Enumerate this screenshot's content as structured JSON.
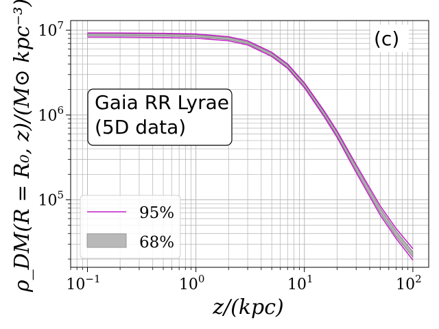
{
  "chart_data": {
    "type": "line",
    "title": "",
    "xlabel": "z/(kpc)",
    "ylabel": "ρ_DM(R = R₀, z)/(M⊙ kpc⁻³)",
    "xscale": "log",
    "yscale": "log",
    "xlim": [
      0.07,
      140
    ],
    "ylim": [
      16000,
      13000000
    ],
    "grid": true,
    "x_ticks": [
      {
        "value": 0.1,
        "base": "10",
        "exp": "−1"
      },
      {
        "value": 1,
        "base": "10",
        "exp": "0"
      },
      {
        "value": 10,
        "base": "10",
        "exp": "1"
      },
      {
        "value": 100,
        "base": "10",
        "exp": "2"
      }
    ],
    "y_ticks": [
      {
        "value": 100000,
        "base": "10",
        "exp": "5"
      },
      {
        "value": 1000000,
        "base": "10",
        "exp": "6"
      },
      {
        "value": 10000000,
        "base": "10",
        "exp": "7"
      }
    ],
    "panel_label": "(c)",
    "annotation": [
      "Gaia RR Lyrae",
      "(5D data)"
    ],
    "legend_position": "lower-left",
    "legend": [
      {
        "label": "95%",
        "kind": "line",
        "color": "#c21ec6"
      },
      {
        "label": "68%",
        "kind": "band",
        "color": "#a8a8a8"
      }
    ],
    "x": [
      0.1,
      0.2,
      0.5,
      1,
      2,
      3,
      5,
      7,
      10,
      15,
      20,
      30,
      50,
      70,
      100
    ],
    "series": [
      {
        "name": "95% upper",
        "values": [
          9300000,
          9280000,
          9200000,
          9050000,
          8400000,
          7500000,
          5500000,
          4000000,
          2400000,
          1150000,
          650000,
          260000,
          85000,
          46000,
          26500
        ]
      },
      {
        "name": "68% upper",
        "values": [
          9100000,
          9080000,
          9000000,
          8850000,
          8200000,
          7300000,
          5350000,
          3900000,
          2330000,
          1110000,
          625000,
          248000,
          80000,
          43000,
          24500
        ]
      },
      {
        "name": "68% lower",
        "values": [
          8600000,
          8580000,
          8500000,
          8350000,
          7750000,
          6900000,
          5050000,
          3650000,
          2170000,
          1020000,
          570000,
          222000,
          70000,
          37000,
          21000
        ]
      },
      {
        "name": "95% lower",
        "values": [
          8300000,
          8280000,
          8200000,
          8050000,
          7500000,
          6700000,
          4900000,
          3550000,
          2100000,
          980000,
          545000,
          210000,
          66000,
          35000,
          19500
        ]
      }
    ]
  }
}
